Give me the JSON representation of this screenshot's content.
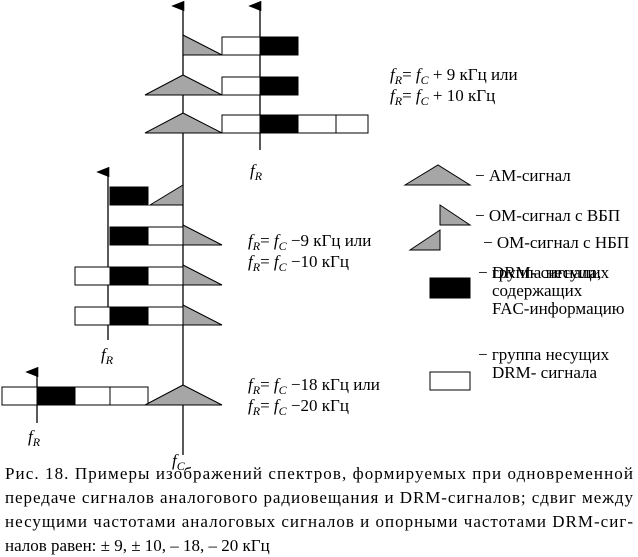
{
  "diagram": {
    "formulas": [
      {
        "lines": [
          [
            "f",
            "R",
            "= ",
            "f",
            "C",
            " + 9 кГц или"
          ],
          [
            "f",
            "R",
            "= ",
            "f",
            "C",
            " + 10 кГц"
          ]
        ]
      },
      {
        "lines": [
          [
            "f",
            "R",
            "= ",
            "f",
            "C",
            " −9 кГц или"
          ],
          [
            "f",
            "R",
            "= ",
            "f",
            "C",
            " −10 кГц"
          ]
        ]
      },
      {
        "lines": [
          [
            "f",
            "R",
            "= ",
            "f",
            "C",
            " −18 кГц или"
          ],
          [
            "f",
            "R",
            "= ",
            "f",
            "C",
            " −20 кГц"
          ]
        ]
      }
    ],
    "axis_labels": [
      [
        "f",
        "R"
      ],
      [
        "f",
        "R"
      ],
      [
        "f",
        "R"
      ],
      [
        "f",
        "C"
      ]
    ],
    "legend": [
      {
        "lines": [
          "− АМ-сигнал"
        ]
      },
      {
        "lines": [
          "− ОМ-сигнал с ВБП"
        ]
      },
      {
        "lines": [
          "− ОМ-сигнал с НБП"
        ]
      },
      {
        "lines": [
          "− группа несущих",
          "DRM- сигнала,",
          "содержащих",
          "FAC-информацию"
        ]
      },
      {
        "lines": [
          "− группа несущих",
          "DRM- сигнала"
        ]
      }
    ],
    "caption": [
      "Рис. 18. Примеры изображений спектров, формируемых при одновременной",
      "передаче сигналов аналогового радиовещания и DRM-сигналов; сдвиг между",
      "несущими частотами аналоговых сигналов и опорными частотами DRM-сиг-",
      "налов равен: ± 9, ± 10, – 18,  – 20 кГц"
    ]
  }
}
